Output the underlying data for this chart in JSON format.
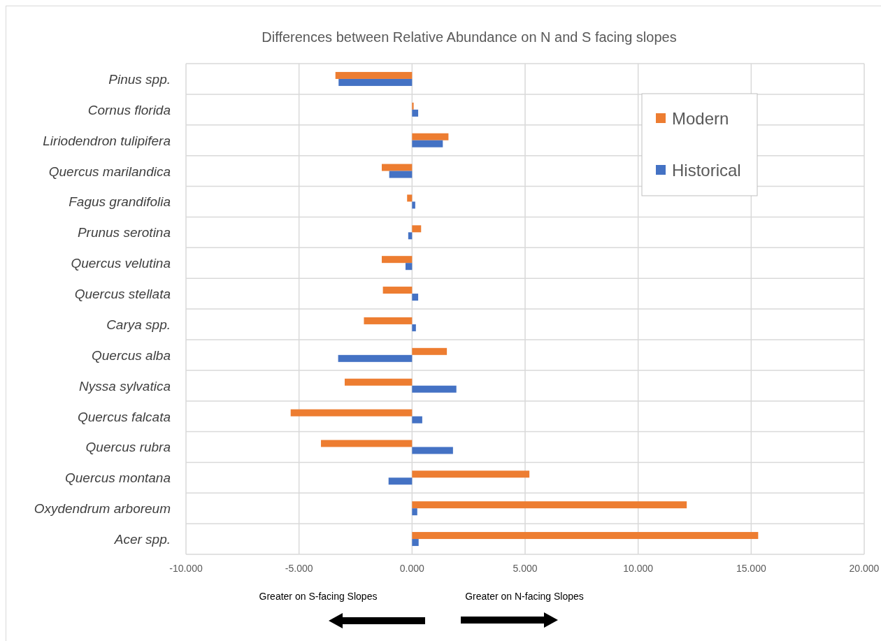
{
  "chart_data": {
    "type": "bar",
    "orientation": "horizontal",
    "title": "Differences between Relative Abundance on N and S facing slopes",
    "categories": [
      "Pinus spp.",
      "Cornus florida",
      "Liriodendron tulipifera",
      "Quercus marilandica",
      "Fagus grandifolia",
      "Prunus serotina",
      "Quercus velutina",
      "Quercus stellata",
      "Carya spp.",
      "Quercus alba",
      "Nyssa sylvatica",
      "Quercus falcata",
      "Quercus rubra",
      "Quercus montana",
      "Oxydendrum arboreum",
      "Acer spp."
    ],
    "series": [
      {
        "name": "Modern",
        "color": "#ed7d31",
        "values": [
          -3.39,
          0.07,
          1.61,
          -1.34,
          -0.22,
          0.4,
          -1.34,
          -1.29,
          -2.13,
          1.54,
          -2.98,
          -5.37,
          -4.03,
          5.19,
          12.15,
          15.31
        ]
      },
      {
        "name": "Historical",
        "color": "#4472c4",
        "values": [
          -3.25,
          0.27,
          1.36,
          -1.01,
          0.14,
          -0.17,
          -0.29,
          0.27,
          0.17,
          -3.27,
          1.96,
          0.45,
          1.81,
          -1.04,
          0.23,
          0.29
        ]
      }
    ],
    "xlim": [
      -10,
      20
    ],
    "xticks": [
      {
        "value": -10,
        "label": "-10.000"
      },
      {
        "value": -5,
        "label": "-5.000"
      },
      {
        "value": 0,
        "label": "0.000"
      },
      {
        "value": 5,
        "label": "5.000"
      },
      {
        "value": 10,
        "label": "10.000"
      },
      {
        "value": 15,
        "label": "15.000"
      },
      {
        "value": 20,
        "label": "20.000"
      }
    ],
    "grid": true,
    "legend": "top right",
    "annotations": [
      "Greater on S-facing Slopes",
      "Greater on N-facing Slopes"
    ]
  }
}
